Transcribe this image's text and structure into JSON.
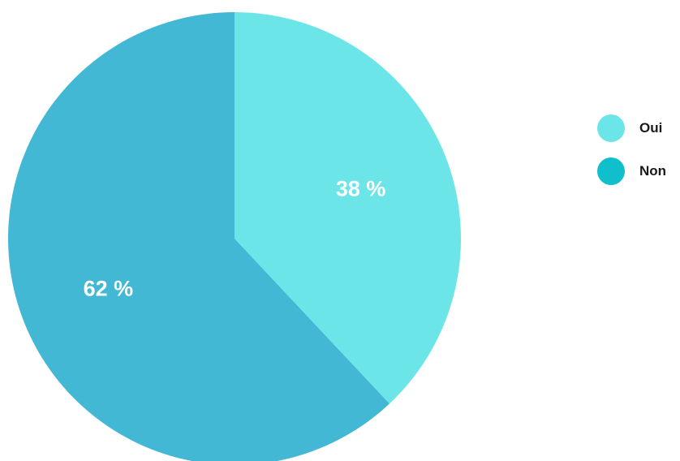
{
  "chart_data": {
    "type": "pie",
    "categories": [
      "Oui",
      "Non"
    ],
    "values": [
      38,
      62
    ],
    "value_labels": [
      "38 %",
      "62 %"
    ],
    "colors": [
      "#6ce5e8",
      "#42b8d5"
    ],
    "legend": {
      "placement": "right",
      "entries": [
        {
          "label": "Oui",
          "color": "#6ce5e8"
        },
        {
          "label": "Non",
          "color": "#0fbfcc"
        }
      ]
    }
  }
}
